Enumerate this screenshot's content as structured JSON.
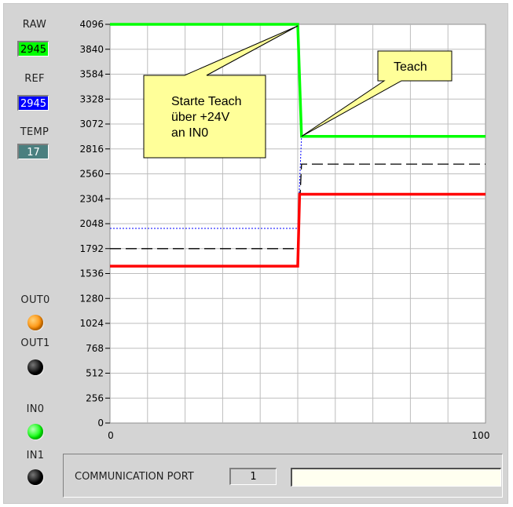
{
  "sidebar": {
    "raw": {
      "label": "RAW",
      "value": "2945",
      "bg": "#00ff00"
    },
    "ref": {
      "label": "REF",
      "value": "2945",
      "bg": "#0000ff"
    },
    "temp": {
      "label": "TEMP",
      "value": "17",
      "bg": "#4a7f7f"
    },
    "out0": {
      "label": "OUT0",
      "color": "#ff8c00"
    },
    "out1": {
      "label": "OUT1",
      "color": "#000000"
    },
    "in0": {
      "label": "IN0",
      "color": "#00ff00"
    },
    "in1": {
      "label": "IN1",
      "color": "#000000"
    }
  },
  "chart_data": {
    "type": "line",
    "xlim": [
      0,
      100
    ],
    "ylim": [
      0,
      4096
    ],
    "x_ticks": [
      "0",
      "100"
    ],
    "y_ticks": [
      "4096",
      "3840",
      "3584",
      "3328",
      "3072",
      "2816",
      "2560",
      "2304",
      "2048",
      "1792",
      "1536",
      "1280",
      "1024",
      "768",
      "512",
      "256",
      "0"
    ],
    "grid": true,
    "series": [
      {
        "color": "#00ff00",
        "style": "solid",
        "points": [
          [
            0,
            4096
          ],
          [
            50,
            4096
          ],
          [
            51,
            2945
          ],
          [
            100,
            2945
          ]
        ]
      },
      {
        "color": "#ff0000",
        "style": "solid",
        "points": [
          [
            0,
            1612
          ],
          [
            50,
            1612
          ],
          [
            50.5,
            2350
          ],
          [
            100,
            2350
          ]
        ]
      },
      {
        "color": "#0000ff",
        "style": "dotted",
        "points": [
          [
            0,
            2000
          ],
          [
            50,
            2000
          ],
          [
            51,
            2945
          ],
          [
            100,
            2945
          ]
        ]
      },
      {
        "color": "#000000",
        "style": "dashed",
        "points": [
          [
            0,
            1792
          ],
          [
            50,
            1792
          ],
          [
            51,
            2660
          ],
          [
            100,
            2660
          ]
        ]
      }
    ],
    "annotations": [
      {
        "lines": [
          "Starte Teach",
          "über +24V",
          "an IN0"
        ]
      },
      {
        "lines": [
          "Teach"
        ]
      }
    ]
  },
  "comm": {
    "label": "COMMUNICATION PORT",
    "port": "1",
    "status": ""
  }
}
